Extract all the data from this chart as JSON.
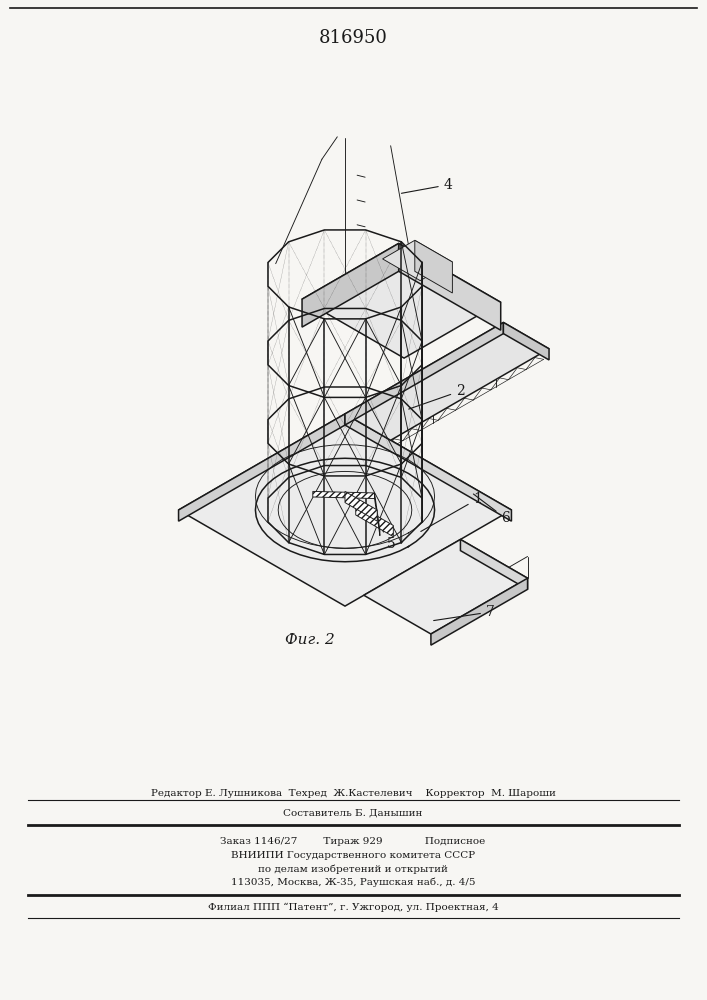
{
  "title": "816950",
  "fig_label": "Фиг. 2",
  "bg_color": "#f7f6f3",
  "line_color": "#1a1a1a",
  "footer_lines": [
    "Составитель Б. Данышин",
    "Редактор Е. Лушникова  Техред  Ж.Кастелевич    Корректор  М. Шароши",
    "Заказ 1146/27        Тираж 929             Подписное",
    "ВНИИПИ Государственного комитета СССР",
    "по делам изобретений и открытий",
    "113035, Москва, Ж-35, Раушская наб., д. 4/5",
    "Филиал ППП “Патент”, г. Ужгород, ул. Проектная, 4"
  ]
}
